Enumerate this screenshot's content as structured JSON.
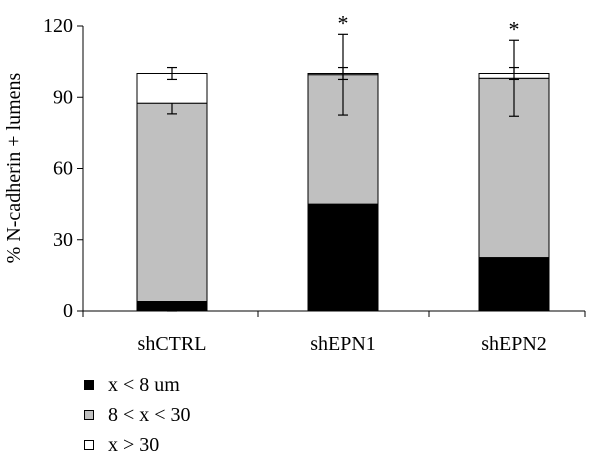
{
  "chart_data": {
    "type": "bar",
    "stacked": true,
    "ylabel": "% N-cadherin + lumens",
    "ylim": [
      0,
      120
    ],
    "yticks": [
      0,
      30,
      60,
      90,
      120
    ],
    "grid": false,
    "legend_position": "bottom-left",
    "categories": [
      "shCTRL",
      "shEPN1",
      "shEPN2"
    ],
    "series": [
      {
        "name": "x < 8 um",
        "color": "#000000",
        "values": [
          4,
          45,
          22.5
        ],
        "errors": [
          4,
          16,
          14
        ],
        "significant": [
          false,
          true,
          true
        ]
      },
      {
        "name": "8 < x < 30",
        "color": "#c0c0c0",
        "values": [
          83.5,
          54.5,
          75.5
        ],
        "errors": [
          4.5,
          17,
          16
        ],
        "significant": [
          false,
          true,
          true
        ]
      },
      {
        "name": "x > 30",
        "color": "#ffffff",
        "values": [
          12.5,
          0.5,
          2
        ],
        "errors": [
          2.5,
          2.5,
          2.5
        ],
        "significant": [
          false,
          false,
          false
        ]
      }
    ],
    "significance_marker": "*"
  }
}
